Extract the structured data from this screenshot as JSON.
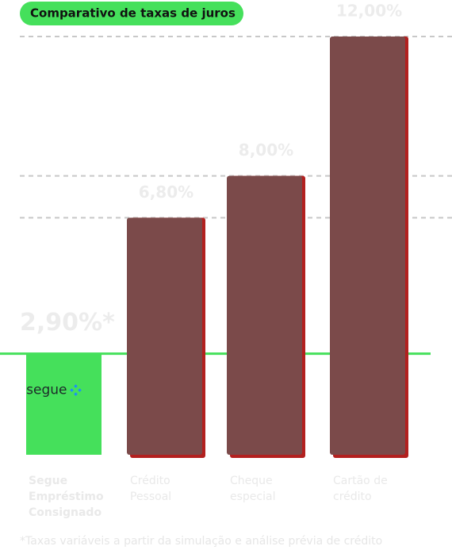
{
  "chart_data": {
    "type": "bar",
    "title": "Comparativo de taxas de juros",
    "categories": [
      "Segue Empréstimo Consignado",
      "Crédito Pessoal",
      "Cheque especial",
      "Cartão de crédito"
    ],
    "values": [
      2.9,
      6.8,
      8,
      12
    ],
    "value_labels": [
      "2,90%*",
      "6,80%",
      "8,00%",
      "12,00%"
    ],
    "colors": [
      "#45e05b",
      "#7b4a4a",
      "#7b4a4a",
      "#7b4a4a"
    ],
    "shadow_color": "#b3201f",
    "highlight": 0,
    "logo": "segue",
    "ylim": [
      0,
      12
    ],
    "footnote": "*Taxas variáveis a partir da simulação e análise prévia de crédito"
  }
}
